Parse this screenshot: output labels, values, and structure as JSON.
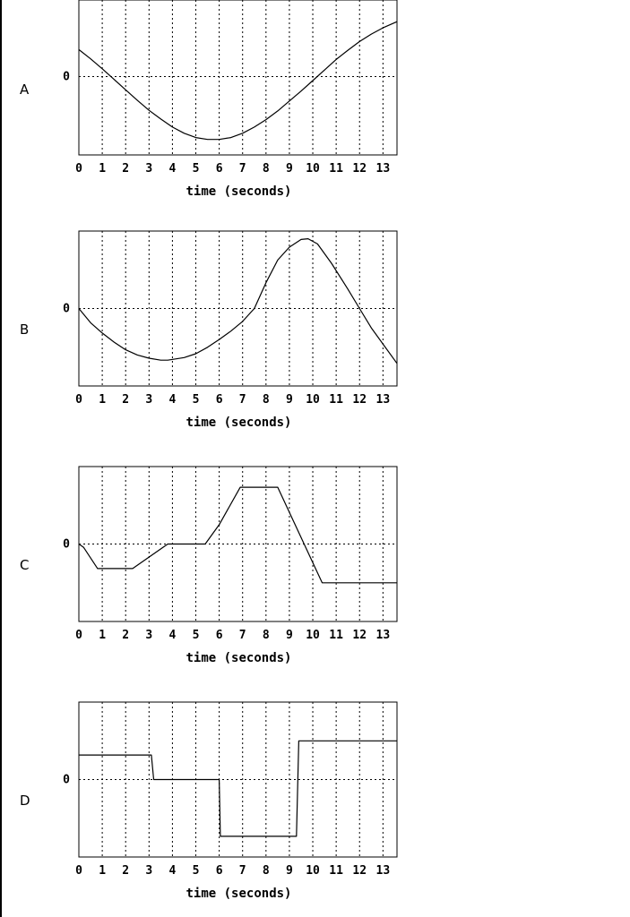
{
  "charts": [
    {
      "label": "A"
    },
    {
      "label": "B"
    },
    {
      "label": "C"
    },
    {
      "label": "D"
    }
  ],
  "chart_data": [
    {
      "type": "line",
      "panel_label": "A",
      "xlabel": "time (seconds)",
      "ylabel_tick": "0",
      "x_ticks": [
        "0",
        "1",
        "2",
        "3",
        "4",
        "5",
        "6",
        "7",
        "8",
        "9",
        "10",
        "11",
        "12",
        "13"
      ],
      "xlim": [
        0,
        13.6
      ],
      "ylim": [
        -1.25,
        1.25
      ],
      "grid": true,
      "series": [
        {
          "x": [
            0,
            0.5,
            1,
            1.5,
            2,
            2.5,
            3,
            3.5,
            4,
            4.5,
            5,
            5.5,
            6,
            6.5,
            7,
            7.5,
            8,
            8.5,
            9,
            9.5,
            10,
            10.5,
            11,
            11.5,
            12,
            12.5,
            13,
            13.6
          ],
          "y": [
            0.45,
            0.3,
            0.14,
            -0.03,
            -0.2,
            -0.37,
            -0.53,
            -0.67,
            -0.8,
            -0.9,
            -0.97,
            -1.0,
            -1.0,
            -0.97,
            -0.9,
            -0.8,
            -0.68,
            -0.54,
            -0.38,
            -0.22,
            -0.05,
            0.12,
            0.29,
            0.44,
            0.58,
            0.7,
            0.8,
            0.9
          ]
        }
      ]
    },
    {
      "type": "line",
      "panel_label": "B",
      "xlabel": "time (seconds)",
      "ylabel_tick": "0",
      "x_ticks": [
        "0",
        "1",
        "2",
        "3",
        "4",
        "5",
        "6",
        "7",
        "8",
        "9",
        "10",
        "11",
        "12",
        "13"
      ],
      "xlim": [
        0,
        13.6
      ],
      "ylim": [
        -1.2,
        1.2
      ],
      "grid": true,
      "series": [
        {
          "x": [
            0,
            0.5,
            1,
            1.5,
            2,
            2.5,
            3,
            3.5,
            3.8,
            4.5,
            5,
            5.5,
            6,
            6.5,
            7,
            7.5,
            8,
            8.5,
            9,
            9.5,
            9.8,
            10.2,
            10.8,
            11.5,
            12,
            12.5,
            13,
            13.6
          ],
          "y": [
            0.0,
            -0.22,
            -0.38,
            -0.52,
            -0.64,
            -0.72,
            -0.77,
            -0.8,
            -0.8,
            -0.76,
            -0.7,
            -0.6,
            -0.48,
            -0.35,
            -0.2,
            0.0,
            0.4,
            0.75,
            0.95,
            1.07,
            1.08,
            1.0,
            0.7,
            0.3,
            0.0,
            -0.3,
            -0.55,
            -0.85
          ]
        }
      ]
    },
    {
      "type": "line",
      "panel_label": "C",
      "xlabel": "time (seconds)",
      "ylabel_tick": "0",
      "x_ticks": [
        "0",
        "1",
        "2",
        "3",
        "4",
        "5",
        "6",
        "7",
        "8",
        "9",
        "10",
        "11",
        "12",
        "13"
      ],
      "xlim": [
        0,
        13.6
      ],
      "ylim": [
        -1.2,
        1.2
      ],
      "grid": true,
      "series": [
        {
          "x": [
            0,
            0.2,
            0.8,
            2.3,
            3.8,
            5.4,
            6.0,
            6.9,
            8.5,
            10.4,
            13.6
          ],
          "y": [
            0.0,
            -0.05,
            -0.38,
            -0.38,
            0.0,
            0.0,
            0.3,
            0.88,
            0.88,
            -0.6,
            -0.6
          ]
        }
      ]
    },
    {
      "type": "line",
      "panel_label": "D",
      "xlabel": "time (seconds)",
      "ylabel_tick": "0",
      "x_ticks": [
        "0",
        "1",
        "2",
        "3",
        "4",
        "5",
        "6",
        "7",
        "8",
        "9",
        "10",
        "11",
        "12",
        "13"
      ],
      "xlim": [
        0,
        13.6
      ],
      "ylim": [
        -1.2,
        1.2
      ],
      "grid": true,
      "series": [
        {
          "x": [
            0,
            3.1,
            3.2,
            6.0,
            6.05,
            9.3,
            9.4,
            13.6
          ],
          "y": [
            0.38,
            0.38,
            0.0,
            0.0,
            -0.88,
            -0.88,
            0.6,
            0.6
          ]
        }
      ]
    }
  ]
}
